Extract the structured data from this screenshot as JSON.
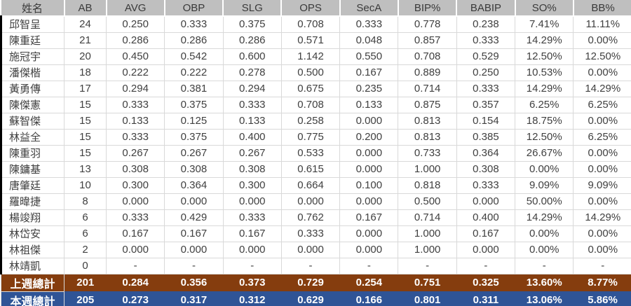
{
  "colors": {
    "header_bg": "#BFBFBF",
    "grid": "#D9D9D9",
    "left_edge": "#000000",
    "last_week_bg": "#853D0E",
    "this_week_bg": "#2F5496",
    "total_text": "#FFFFFF",
    "body_text": "#404040"
  },
  "table": {
    "columns": [
      "姓名",
      "AB",
      "AVG",
      "OBP",
      "SLG",
      "OPS",
      "SecA",
      "BIP%",
      "BABIP",
      "SO%",
      "BB%"
    ],
    "players": [
      {
        "name": "邱智呈",
        "values": [
          "24",
          "0.250",
          "0.333",
          "0.375",
          "0.708",
          "0.333",
          "0.778",
          "0.238",
          "7.41%",
          "11.11%"
        ]
      },
      {
        "name": "陳重廷",
        "values": [
          "21",
          "0.286",
          "0.286",
          "0.286",
          "0.571",
          "0.048",
          "0.857",
          "0.333",
          "14.29%",
          "0.00%"
        ]
      },
      {
        "name": "施冠宇",
        "values": [
          "20",
          "0.450",
          "0.542",
          "0.600",
          "1.142",
          "0.550",
          "0.708",
          "0.529",
          "12.50%",
          "12.50%"
        ]
      },
      {
        "name": "潘傑楷",
        "values": [
          "18",
          "0.222",
          "0.222",
          "0.278",
          "0.500",
          "0.167",
          "0.889",
          "0.250",
          "10.53%",
          "0.00%"
        ]
      },
      {
        "name": "黃勇傳",
        "values": [
          "17",
          "0.294",
          "0.381",
          "0.294",
          "0.675",
          "0.235",
          "0.714",
          "0.333",
          "14.29%",
          "14.29%"
        ]
      },
      {
        "name": "陳傑憲",
        "values": [
          "15",
          "0.333",
          "0.375",
          "0.333",
          "0.708",
          "0.133",
          "0.875",
          "0.357",
          "6.25%",
          "6.25%"
        ]
      },
      {
        "name": "蘇智傑",
        "values": [
          "15",
          "0.133",
          "0.125",
          "0.133",
          "0.258",
          "0.000",
          "0.813",
          "0.154",
          "18.75%",
          "0.00%"
        ]
      },
      {
        "name": "林益全",
        "values": [
          "15",
          "0.333",
          "0.375",
          "0.400",
          "0.775",
          "0.200",
          "0.813",
          "0.385",
          "12.50%",
          "6.25%"
        ]
      },
      {
        "name": "陳重羽",
        "values": [
          "15",
          "0.267",
          "0.267",
          "0.267",
          "0.533",
          "0.000",
          "0.733",
          "0.364",
          "26.67%",
          "0.00%"
        ]
      },
      {
        "name": "陳鏞基",
        "values": [
          "13",
          "0.308",
          "0.308",
          "0.308",
          "0.615",
          "0.000",
          "1.000",
          "0.308",
          "0.00%",
          "0.00%"
        ]
      },
      {
        "name": "唐肇廷",
        "values": [
          "10",
          "0.300",
          "0.364",
          "0.300",
          "0.664",
          "0.100",
          "0.818",
          "0.333",
          "9.09%",
          "9.09%"
        ]
      },
      {
        "name": "羅暐捷",
        "values": [
          "8",
          "0.000",
          "0.000",
          "0.000",
          "0.000",
          "0.000",
          "0.500",
          "0.000",
          "50.00%",
          "0.00%"
        ]
      },
      {
        "name": "楊竣翔",
        "values": [
          "6",
          "0.333",
          "0.429",
          "0.333",
          "0.762",
          "0.167",
          "0.714",
          "0.400",
          "14.29%",
          "14.29%"
        ]
      },
      {
        "name": "林岱安",
        "values": [
          "6",
          "0.167",
          "0.167",
          "0.167",
          "0.333",
          "0.000",
          "1.000",
          "0.167",
          "0.00%",
          "0.00%"
        ]
      },
      {
        "name": "林祖傑",
        "values": [
          "2",
          "0.000",
          "0.000",
          "0.000",
          "0.000",
          "0.000",
          "1.000",
          "0.000",
          "0.00%",
          "0.00%"
        ]
      },
      {
        "name": "林靖凱",
        "values": [
          "0",
          "-",
          "-",
          "-",
          "-",
          "-",
          "-",
          "-",
          "-",
          "-"
        ]
      }
    ],
    "totals": [
      {
        "label": "上週總計",
        "bg": "#853D0E",
        "values": [
          "201",
          "0.284",
          "0.356",
          "0.373",
          "0.729",
          "0.254",
          "0.751",
          "0.325",
          "13.60%",
          "8.77%"
        ]
      },
      {
        "label": "本週總計",
        "bg": "#2F5496",
        "values": [
          "205",
          "0.273",
          "0.317",
          "0.312",
          "0.629",
          "0.166",
          "0.801",
          "0.311",
          "13.06%",
          "5.86%"
        ]
      }
    ]
  }
}
